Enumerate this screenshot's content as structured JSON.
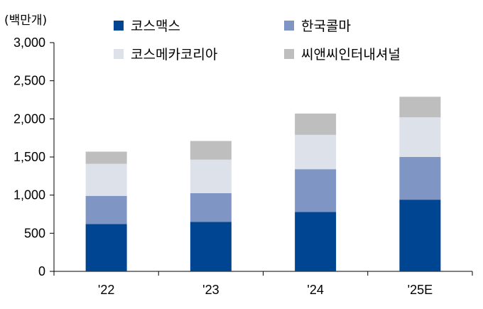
{
  "chart_data": {
    "type": "bar",
    "stacked": true,
    "unit_label": "(백만개)",
    "categories": [
      "'22",
      "'23",
      "'24",
      "'25E"
    ],
    "series": [
      {
        "name": "코스맥스",
        "color": "#004592",
        "values": [
          620,
          650,
          780,
          940
        ]
      },
      {
        "name": "한국콜마",
        "color": "#7F95C4",
        "values": [
          370,
          375,
          560,
          560
        ]
      },
      {
        "name": "코스메카코리아",
        "color": "#DCE1EA",
        "values": [
          420,
          440,
          450,
          520
        ]
      },
      {
        "name": "씨앤씨인터내셔널",
        "color": "#BEBEBE",
        "values": [
          160,
          245,
          280,
          270
        ]
      }
    ],
    "ylim": [
      0,
      3000
    ],
    "yticks": [
      "0",
      "500",
      "1,000",
      "1,500",
      "2,000",
      "2,500",
      "3,000"
    ],
    "ytick_values": [
      0,
      500,
      1000,
      1500,
      2000,
      2500,
      3000
    ],
    "legend_position": "top",
    "grid": false
  }
}
